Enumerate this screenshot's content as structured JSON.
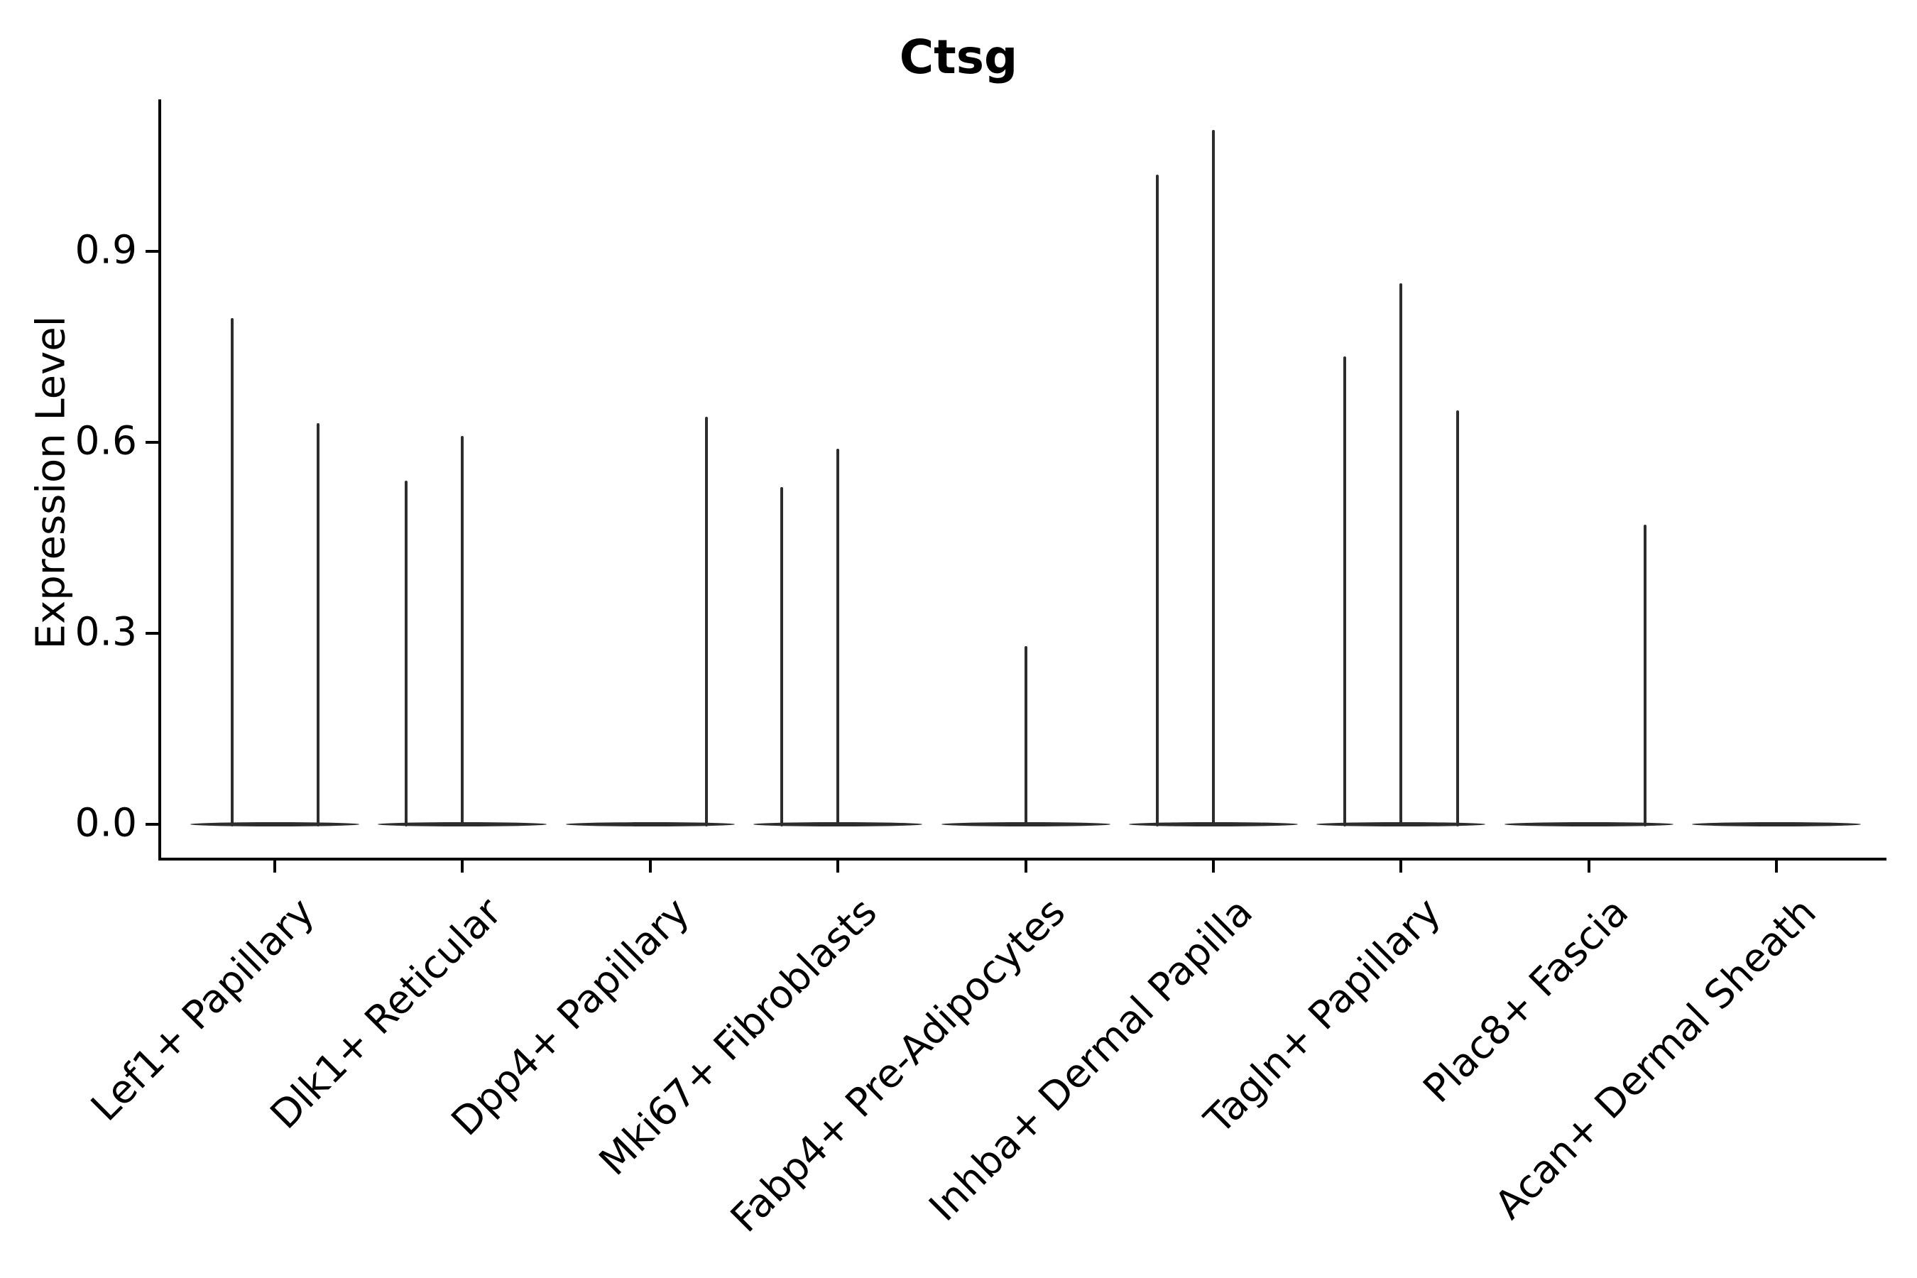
{
  "chart_data": {
    "type": "violin",
    "title": "Ctsg",
    "ylabel": "Expression Level",
    "xlabel": "",
    "ytick_labels": [
      "0.0",
      "0.3",
      "0.6",
      "0.9"
    ],
    "ytick_values": [
      0.0,
      0.3,
      0.6,
      0.9
    ],
    "ylim": [
      -0.055,
      1.14
    ],
    "grid": false,
    "legend": false,
    "violin_body_width_frac": 0.9,
    "violin_color": "#2d2d2d",
    "axis_color": "#000000",
    "categories": [
      "Lef1+ Papillary",
      "Dlk1+ Reticular",
      "Dpp4+ Papillary",
      "Mki67+ Fibroblasts",
      "Fabp4+ Pre-Adipocytes",
      "Inhba+ Dermal Papilla",
      "Tagln+ Papillary",
      "Plac8+ Fascia",
      "Acan+ Dermal Sheath"
    ],
    "series": [
      {
        "category": "Lef1+ Papillary",
        "spikes": [
          {
            "x_offset_frac": -0.227,
            "max": 0.795
          },
          {
            "x_offset_frac": 0.231,
            "max": 0.63
          }
        ]
      },
      {
        "category": "Dlk1+ Reticular",
        "spikes": [
          {
            "x_offset_frac": -0.3,
            "max": 0.54
          },
          {
            "x_offset_frac": 0.0,
            "max": 0.61
          }
        ]
      },
      {
        "category": "Dpp4+ Papillary",
        "spikes": [
          {
            "x_offset_frac": 0.3,
            "max": 0.64
          }
        ]
      },
      {
        "category": "Mki67+ Fibroblasts",
        "spikes": [
          {
            "x_offset_frac": -0.3,
            "max": 0.53
          },
          {
            "x_offset_frac": 0.0,
            "max": 0.59
          }
        ]
      },
      {
        "category": "Fabp4+ Pre-Adipocytes",
        "spikes": [
          {
            "x_offset_frac": 0.0,
            "max": 0.28
          }
        ]
      },
      {
        "category": "Inhba+ Dermal Papilla",
        "spikes": [
          {
            "x_offset_frac": -0.3,
            "max": 1.02
          },
          {
            "x_offset_frac": 0.0,
            "max": 1.09
          }
        ]
      },
      {
        "category": "Tagln+ Papillary",
        "spikes": [
          {
            "x_offset_frac": -0.3,
            "max": 0.735
          },
          {
            "x_offset_frac": 0.0,
            "max": 0.85
          },
          {
            "x_offset_frac": 0.3,
            "max": 0.65
          }
        ]
      },
      {
        "category": "Plac8+ Fascia",
        "spikes": [
          {
            "x_offset_frac": 0.3,
            "max": 0.47
          }
        ]
      },
      {
        "category": "Acan+ Dermal Sheath",
        "spikes": []
      }
    ]
  }
}
